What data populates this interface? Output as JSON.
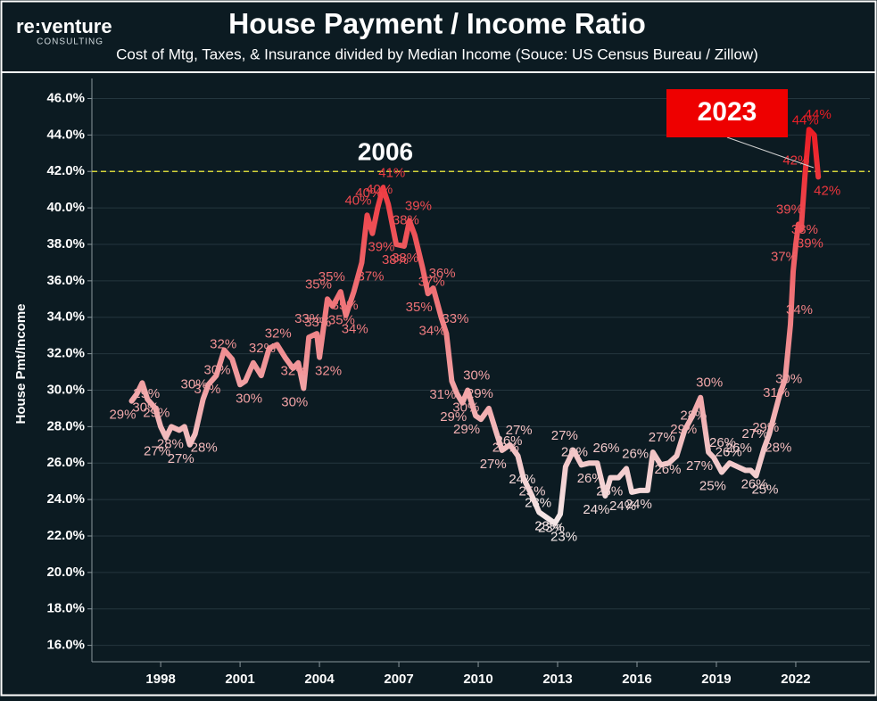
{
  "chart_data": {
    "type": "line",
    "logo": "re:venture",
    "logo_sub": "CONSULTING",
    "title": "House Payment / Income Ratio",
    "subtitle": "Cost of Mtg, Taxes, & Insurance divided by Median Income (Souce: US Census Bureau / Zillow)",
    "y_label": "House Pmt/Income",
    "annotations": [
      "2006",
      "2023"
    ],
    "reference_line": {
      "value": 42,
      "color": "#d4d43a"
    },
    "color_scale": [
      "#f4e8e8",
      "#ec1c24"
    ],
    "grid": true,
    "xlim": [
      1995.4,
      2024.8
    ],
    "xticks": [
      1998,
      2001,
      2004,
      2007,
      2010,
      2013,
      2016,
      2019,
      2022
    ],
    "ylim": [
      15.1,
      47.1
    ],
    "yticks": [
      {
        "value": 16,
        "label": "16.0%"
      },
      {
        "value": 18,
        "label": "18.0%"
      },
      {
        "value": 20,
        "label": "20.0%"
      },
      {
        "value": 22,
        "label": "22.0%"
      },
      {
        "value": 24,
        "label": "24.0%"
      },
      {
        "value": 26,
        "label": "26.0%"
      },
      {
        "value": 28,
        "label": "28.0%"
      },
      {
        "value": 30,
        "label": "30.0%"
      },
      {
        "value": 32,
        "label": "32.0%"
      },
      {
        "value": 34,
        "label": "34.0%"
      },
      {
        "value": 36,
        "label": "36.0%"
      },
      {
        "value": 38,
        "label": "38.0%"
      },
      {
        "value": 40,
        "label": "40.0%"
      },
      {
        "value": 42,
        "label": "42.0%"
      },
      {
        "value": 44,
        "label": "44.0%"
      },
      {
        "value": 46,
        "label": "46.0%"
      }
    ],
    "x": [
      1996.9,
      1997.1,
      1997.3,
      1997.5,
      1997.8,
      1998.0,
      1998.2,
      1998.4,
      1998.7,
      1998.9,
      1999.1,
      1999.3,
      1999.6,
      1999.8,
      2000.1,
      2000.4,
      2000.7,
      2001.0,
      2001.2,
      2001.5,
      2001.8,
      2002.1,
      2002.4,
      2002.7,
      2003.0,
      2003.2,
      2003.4,
      2003.6,
      2003.9,
      2004.0,
      2004.3,
      2004.5,
      2004.8,
      2005.0,
      2005.3,
      2005.6,
      2005.8,
      2006.0,
      2006.2,
      2006.4,
      2006.6,
      2006.9,
      2007.2,
      2007.4,
      2007.6,
      2007.9,
      2008.1,
      2008.3,
      2008.6,
      2008.8,
      2009.0,
      2009.2,
      2009.4,
      2009.6,
      2009.9,
      2010.1,
      2010.4,
      2010.7,
      2010.9,
      2011.2,
      2011.5,
      2011.7,
      2012.0,
      2012.3,
      2012.6,
      2012.9,
      2013.1,
      2013.3,
      2013.6,
      2013.9,
      2014.2,
      2014.5,
      2014.8,
      2015.0,
      2015.3,
      2015.6,
      2015.8,
      2016.1,
      2016.4,
      2016.6,
      2016.9,
      2017.2,
      2017.5,
      2017.8,
      2018.1,
      2018.4,
      2018.7,
      2018.9,
      2019.2,
      2019.5,
      2019.8,
      2020.1,
      2020.3,
      2020.5,
      2020.8,
      2021.0,
      2021.2,
      2021.4,
      2021.6,
      2021.8,
      2021.9,
      2022.0,
      2022.1,
      2022.2,
      2022.35,
      2022.5,
      2022.7,
      2022.85
    ],
    "values": [
      29.4,
      29.8,
      30.4,
      29.5,
      29.0,
      28.0,
      27.4,
      28.0,
      27.8,
      28.0,
      27.0,
      27.6,
      29.5,
      30.3,
      30.8,
      32.2,
      31.7,
      30.3,
      30.5,
      31.5,
      30.8,
      32.3,
      32.5,
      31.8,
      31.2,
      31.5,
      30.1,
      32.9,
      33.1,
      31.8,
      35.0,
      34.6,
      35.4,
      34.1,
      35.4,
      37.0,
      39.6,
      38.6,
      40.0,
      41.1,
      40.2,
      38.0,
      37.9,
      39.3,
      38.5,
      36.7,
      35.3,
      35.6,
      34.0,
      33.1,
      30.5,
      29.8,
      29.3,
      30.0,
      28.6,
      28.4,
      29.0,
      27.6,
      26.7,
      27.0,
      26.4,
      25.2,
      24.3,
      23.3,
      23.0,
      22.7,
      23.2,
      25.8,
      26.7,
      25.9,
      26.0,
      26.0,
      24.2,
      25.2,
      25.2,
      25.7,
      24.4,
      24.5,
      24.5,
      26.6,
      25.9,
      26.0,
      26.4,
      27.8,
      28.6,
      29.6,
      26.6,
      26.3,
      25.5,
      26.0,
      25.8,
      25.6,
      25.6,
      25.3,
      26.8,
      27.6,
      28.7,
      29.8,
      30.6,
      33.6,
      36.5,
      38.0,
      39.1,
      38.8,
      41.8,
      44.3,
      44.0,
      41.7
    ],
    "value_labels": [
      "29%",
      "30%",
      null,
      "29%",
      "29%",
      null,
      "27%",
      null,
      "28%",
      null,
      "27%",
      "28%",
      "30%",
      "30%",
      "31%",
      null,
      "32%",
      "30%",
      null,
      "32%",
      null,
      "32%",
      null,
      "32%",
      null,
      null,
      "30%",
      "33%",
      "33%",
      "32%",
      "35%",
      "35%",
      "35%",
      "34%",
      "35%",
      "37%",
      "40%",
      "39%",
      "40%",
      "41%",
      "40%",
      "38%",
      "38%",
      "39%",
      "38%",
      "37%",
      "35%",
      "36%",
      "34%",
      "33%",
      "31%",
      "30%",
      "29%",
      "30%",
      "29%",
      null,
      "29%",
      "28%",
      "27%",
      "27%",
      "26%",
      "25%",
      "24%",
      "23%",
      "23%",
      "23%",
      "23%",
      "26%",
      "27%",
      "26%",
      null,
      "26%",
      "24%",
      null,
      "25%",
      "26%",
      "24%",
      null,
      "24%",
      "27%",
      null,
      null,
      "26%",
      "28%",
      "29%",
      "30%",
      "27%",
      "26%",
      "25%",
      "26%",
      "26%",
      "26%",
      null,
      "25%",
      "27%",
      "28%",
      "29%",
      "30%",
      "31%",
      "34%",
      "37%",
      "38%",
      "39%",
      "39%",
      "42%",
      "44%",
      "44%",
      "42%"
    ]
  }
}
